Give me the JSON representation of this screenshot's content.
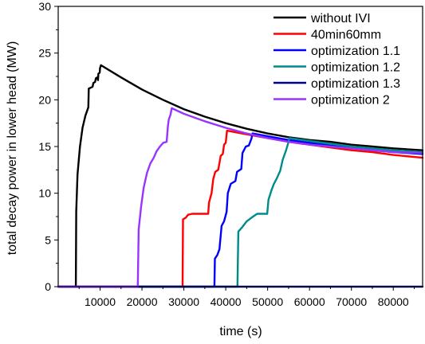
{
  "chart_data": {
    "type": "line",
    "title": "",
    "xlabel": "time (s)",
    "ylabel": "total decay power in lower head (MW)",
    "xlim": [
      0,
      87000
    ],
    "ylim": [
      0,
      30
    ],
    "xticks": [
      10000,
      20000,
      30000,
      40000,
      50000,
      60000,
      70000,
      80000
    ],
    "yticks": [
      0,
      5,
      10,
      15,
      20,
      25,
      30
    ],
    "grid": false,
    "legend_position": "top-right",
    "series": [
      {
        "name": "without IVI",
        "color": "#000000",
        "points": [
          [
            0,
            0
          ],
          [
            4200,
            0
          ],
          [
            4300,
            8
          ],
          [
            4600,
            12
          ],
          [
            5200,
            15
          ],
          [
            5800,
            17
          ],
          [
            6500,
            18.3
          ],
          [
            7200,
            19.2
          ],
          [
            7300,
            21.2
          ],
          [
            8200,
            21.4
          ],
          [
            8400,
            21.8
          ],
          [
            8800,
            21.9
          ],
          [
            9000,
            22.3
          ],
          [
            9300,
            22.4
          ],
          [
            9500,
            22.1
          ],
          [
            9600,
            22.8
          ],
          [
            9900,
            22.9
          ],
          [
            10000,
            23.4
          ],
          [
            10200,
            23.7
          ],
          [
            15000,
            22.4
          ],
          [
            20000,
            21.1
          ],
          [
            25000,
            20.0
          ],
          [
            30000,
            19.0
          ],
          [
            35000,
            18.2
          ],
          [
            40000,
            17.5
          ],
          [
            45000,
            16.9
          ],
          [
            50000,
            16.4
          ],
          [
            55000,
            16.0
          ],
          [
            60000,
            15.7
          ],
          [
            65000,
            15.5
          ],
          [
            70000,
            15.2
          ],
          [
            75000,
            15.0
          ],
          [
            80000,
            14.8
          ],
          [
            87000,
            14.6
          ]
        ]
      },
      {
        "name": "40min60mm",
        "color": "#ff0000",
        "points": [
          [
            0,
            0
          ],
          [
            29700,
            0
          ],
          [
            29800,
            7.2
          ],
          [
            30500,
            7.4
          ],
          [
            31000,
            7.7
          ],
          [
            32000,
            7.8
          ],
          [
            35800,
            7.8
          ],
          [
            36000,
            9
          ],
          [
            36600,
            10
          ],
          [
            37000,
            11.5
          ],
          [
            37500,
            12.3
          ],
          [
            38200,
            12.5
          ],
          [
            38800,
            14
          ],
          [
            39300,
            14.2
          ],
          [
            39600,
            15.2
          ],
          [
            40000,
            15.4
          ],
          [
            40300,
            16.7
          ],
          [
            45000,
            16.3
          ],
          [
            50000,
            15.9
          ],
          [
            55000,
            15.5
          ],
          [
            60000,
            15.2
          ],
          [
            65000,
            14.9
          ],
          [
            70000,
            14.6
          ],
          [
            75000,
            14.4
          ],
          [
            80000,
            14.1
          ],
          [
            87000,
            13.8
          ]
        ]
      },
      {
        "name": "optimization 1.1",
        "color": "#0000ff",
        "points": [
          [
            0,
            0
          ],
          [
            37300,
            0
          ],
          [
            37400,
            3
          ],
          [
            38000,
            3.4
          ],
          [
            38500,
            4
          ],
          [
            39000,
            6.5
          ],
          [
            39600,
            7
          ],
          [
            40200,
            8
          ],
          [
            40500,
            10
          ],
          [
            41200,
            11
          ],
          [
            42300,
            11.3
          ],
          [
            42700,
            12.3
          ],
          [
            43700,
            12.6
          ],
          [
            44000,
            14.3
          ],
          [
            44800,
            15
          ],
          [
            45500,
            15.1
          ],
          [
            46100,
            15.8
          ],
          [
            46400,
            16.4
          ],
          [
            50000,
            16.1
          ],
          [
            55000,
            15.7
          ],
          [
            60000,
            15.4
          ],
          [
            65000,
            15.1
          ],
          [
            70000,
            14.9
          ],
          [
            75000,
            14.6
          ],
          [
            80000,
            14.4
          ],
          [
            87000,
            14.2
          ]
        ]
      },
      {
        "name": "optimization 1.2",
        "color": "#008b8b",
        "points": [
          [
            0,
            0
          ],
          [
            42800,
            0
          ],
          [
            43000,
            5.9
          ],
          [
            43800,
            6.3
          ],
          [
            45000,
            7
          ],
          [
            46500,
            7.5
          ],
          [
            47500,
            7.8
          ],
          [
            49900,
            7.8
          ],
          [
            50200,
            9.3
          ],
          [
            50900,
            10.3
          ],
          [
            51500,
            11
          ],
          [
            52200,
            11.6
          ],
          [
            53000,
            12.4
          ],
          [
            53600,
            13.6
          ],
          [
            54400,
            14.6
          ],
          [
            55000,
            15.5
          ],
          [
            55200,
            15.9
          ],
          [
            60000,
            15.6
          ],
          [
            65000,
            15.3
          ],
          [
            70000,
            15.0
          ],
          [
            75000,
            14.8
          ],
          [
            80000,
            14.6
          ],
          [
            87000,
            14.4
          ]
        ]
      },
      {
        "name": "optimization 1.3",
        "color": "#00008b",
        "points": [
          [
            0,
            0
          ],
          [
            87000,
            0
          ]
        ]
      },
      {
        "name": "optimization 2",
        "color": "#9933ff",
        "points": [
          [
            0,
            0
          ],
          [
            19000,
            0
          ],
          [
            19200,
            6.1
          ],
          [
            19800,
            8.6
          ],
          [
            20400,
            10.6
          ],
          [
            21200,
            12.2
          ],
          [
            22000,
            13.2
          ],
          [
            22800,
            13.8
          ],
          [
            23500,
            14.5
          ],
          [
            24300,
            15
          ],
          [
            25100,
            15.4
          ],
          [
            25900,
            15.5
          ],
          [
            26200,
            17.2
          ],
          [
            26400,
            17.9
          ],
          [
            26800,
            18.4
          ],
          [
            27100,
            19.1
          ],
          [
            30000,
            18.5
          ],
          [
            35000,
            17.7
          ],
          [
            40000,
            17.0
          ],
          [
            45000,
            16.4
          ],
          [
            50000,
            15.9
          ],
          [
            55000,
            15.5
          ],
          [
            60000,
            15.2
          ],
          [
            65000,
            15.0
          ],
          [
            70000,
            14.8
          ],
          [
            75000,
            14.6
          ],
          [
            80000,
            14.4
          ],
          [
            87000,
            14.3
          ]
        ]
      }
    ]
  }
}
